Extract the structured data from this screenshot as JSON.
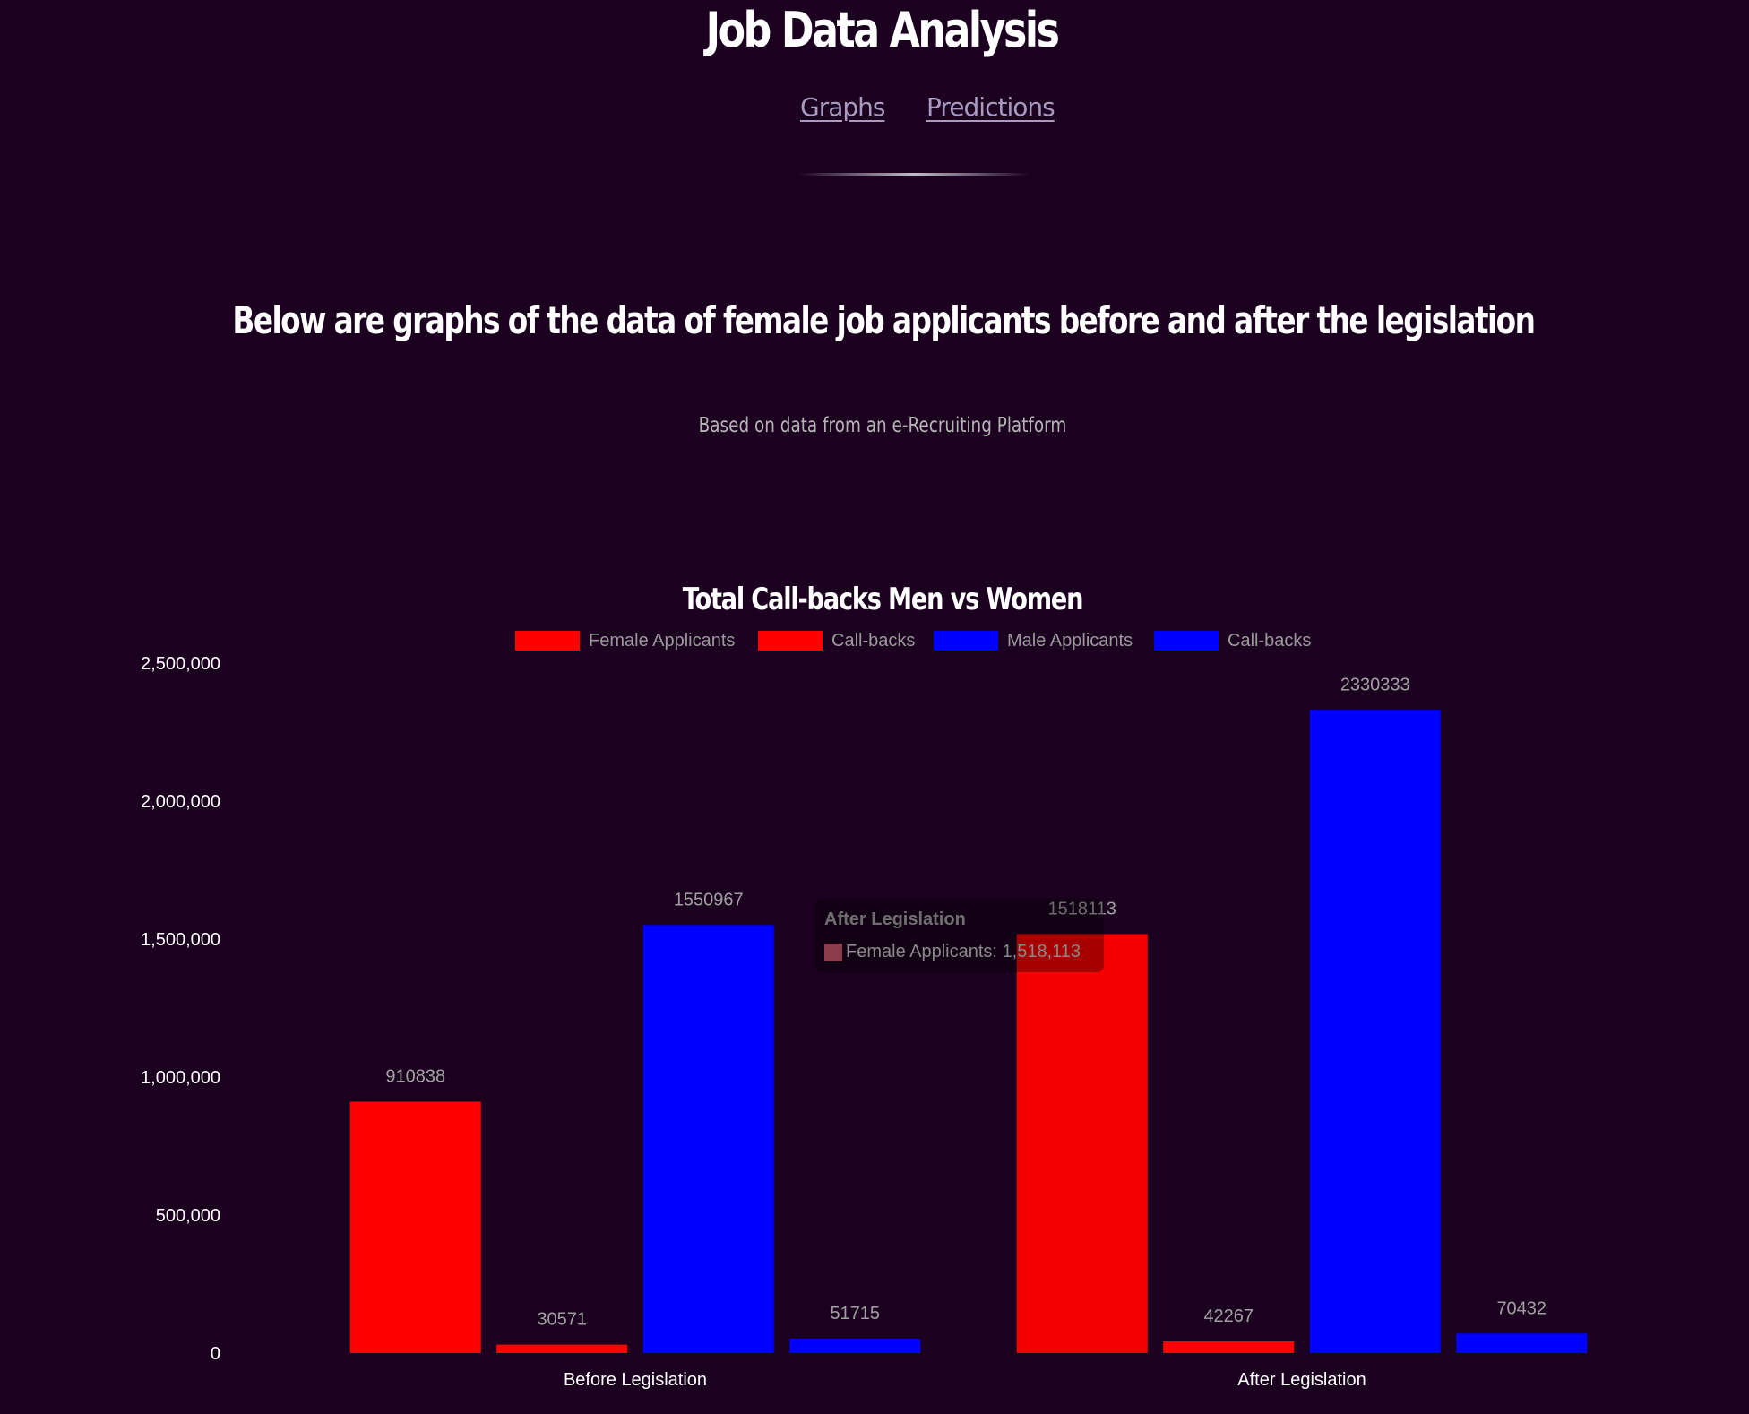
{
  "header": {
    "title": "Job Data Analysis",
    "nav": [
      {
        "label": "Graphs"
      },
      {
        "label": "Predictions"
      }
    ]
  },
  "intro": {
    "headline": "Below are graphs of the data of female job applicants before and after the legislation",
    "source_note": "Based on data from an e-Recruiting Platform"
  },
  "colors": {
    "background": "#1b0020",
    "female": "#ff0000",
    "male": "#0000ff"
  },
  "tooltip": {
    "title": "After Legislation",
    "label": "Female Applicants: 1,518,113"
  },
  "chart_data": {
    "type": "bar",
    "title": "Total Call-backs Men vs Women",
    "categories": [
      "Before Legislation",
      "After Legislation"
    ],
    "series": [
      {
        "name": "Female Applicants",
        "color": "#ff0000",
        "values": [
          910838,
          1518113
        ]
      },
      {
        "name": "Call-backs",
        "color": "#ff0000",
        "values": [
          30571,
          42267
        ]
      },
      {
        "name": "Male Applicants",
        "color": "#0000ff",
        "values": [
          1550967,
          2330333
        ]
      },
      {
        "name": "Call-backs",
        "color": "#0000ff",
        "values": [
          51715,
          70432
        ]
      }
    ],
    "ylim": [
      0,
      2500000
    ],
    "yticks": [
      0,
      500000,
      1000000,
      1500000,
      2000000,
      2500000
    ],
    "ytick_labels": [
      "0",
      "500,000",
      "1,000,000",
      "1,500,000",
      "2,000,000",
      "2,500,000"
    ],
    "xlabel": "",
    "ylabel": "",
    "grid": false,
    "legend_position": "top"
  }
}
